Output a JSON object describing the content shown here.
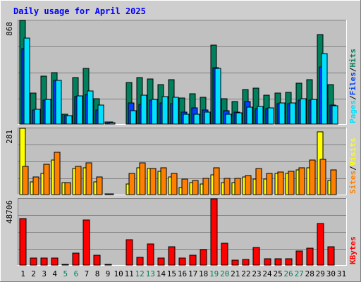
{
  "colors": {
    "frame_bg": "#cecece",
    "plot_bg": "#c0c0c0",
    "grid": "#808080",
    "title": "#0000ff",
    "hits_dark": "#00805c",
    "files_dark": "#0040ff",
    "pages_light": "#00e0ff",
    "visits_light": "#ffff00",
    "sites_dark": "#ff8000",
    "kbytes": "#ff0000",
    "weekend": "#00805c",
    "weekday": "#000000",
    "sep_blue": "#0000ff",
    "sep_slash": "#000000"
  },
  "chart_data": {
    "type": "bar",
    "title": "Daily usage for April 2025",
    "x": {
      "days": [
        "1",
        "2",
        "3",
        "4",
        "5",
        "6",
        "7",
        "8",
        "9",
        "10",
        "11",
        "12",
        "13",
        "14",
        "15",
        "16",
        "17",
        "18",
        "19",
        "20",
        "21",
        "22",
        "23",
        "24",
        "25",
        "26",
        "27",
        "28",
        "29",
        "30",
        "31"
      ],
      "weekend_days": [
        "5",
        "6",
        "12",
        "13",
        "19",
        "20",
        "26",
        "27"
      ]
    },
    "panels": [
      {
        "id": "hits-files-pages",
        "max_label": "868",
        "ymax": 868,
        "right_labels": [
          {
            "text": "Pages",
            "color": "#00e0ff"
          },
          {
            "text": "Files",
            "color": "#0040ff"
          },
          {
            "text": "Hits",
            "color": "#00805c"
          }
        ],
        "series": [
          {
            "name": "Hits",
            "color": "#00805c",
            "values": [
              868,
              262,
              400,
              430,
              80,
              390,
              465,
              215,
              20,
              0,
              350,
              390,
              380,
              330,
              370,
              220,
              255,
              225,
              660,
              210,
              190,
              290,
              300,
              240,
              260,
              265,
              340,
              370,
              750,
              330,
              0
            ]
          },
          {
            "name": "Files",
            "color": "#0040ff",
            "values": [
              630,
              120,
              200,
              365,
              70,
              230,
              250,
              120,
              15,
              0,
              180,
              165,
              200,
              180,
              170,
              100,
              135,
              120,
              470,
              110,
              100,
              190,
              130,
              130,
              170,
              170,
              200,
              200,
              480,
              160,
              0
            ]
          },
          {
            "name": "Pages",
            "color": "#00e0ff",
            "values": [
              720,
              125,
              205,
              365,
              70,
              235,
              275,
              160,
              14,
              0,
              115,
              240,
              205,
              230,
              225,
              85,
              85,
              100,
              465,
              85,
              95,
              140,
              150,
              135,
              175,
              175,
              210,
              205,
              590,
              155,
              0
            ]
          }
        ]
      },
      {
        "id": "visits-sites",
        "max_label": "281",
        "ymax": 281,
        "right_labels": [
          {
            "text": "Sites",
            "color": "#ff8000"
          },
          {
            "text": "Visits",
            "color": "#ffff00"
          }
        ],
        "series": [
          {
            "name": "Visits",
            "color": "#ffff00",
            "values": [
              281,
              55,
              90,
              145,
              50,
              110,
              115,
              55,
              3,
              0,
              45,
              115,
              110,
              100,
              75,
              30,
              50,
              45,
              85,
              50,
              50,
              75,
              65,
              65,
              90,
              90,
              105,
              115,
              265,
              60,
              0
            ]
          },
          {
            "name": "Sites",
            "color": "#ff8000",
            "values": [
              120,
              75,
              130,
              180,
              50,
              120,
              135,
              75,
              3,
              0,
              90,
              135,
              110,
              115,
              90,
              65,
              60,
              70,
              115,
              70,
              70,
              80,
              110,
              90,
              95,
              100,
              115,
              145,
              150,
              105,
              0
            ]
          }
        ]
      },
      {
        "id": "kbytes",
        "max_label": "48706",
        "ymax": 48706,
        "right_labels": [
          {
            "text": "KBytes",
            "color": "#ff0000"
          }
        ],
        "series": [
          {
            "name": "KBytes",
            "color": "#ff0000",
            "values": [
              34000,
              5000,
              5000,
              5000,
              500,
              9000,
              33000,
              7500,
              400,
              0,
              18500,
              5500,
              15500,
              5000,
              13500,
              5000,
              7500,
              11500,
              48706,
              16000,
              3500,
              4000,
              13000,
              4500,
              4500,
              4500,
              10500,
              12500,
              30500,
              13500,
              0
            ]
          }
        ]
      }
    ]
  }
}
